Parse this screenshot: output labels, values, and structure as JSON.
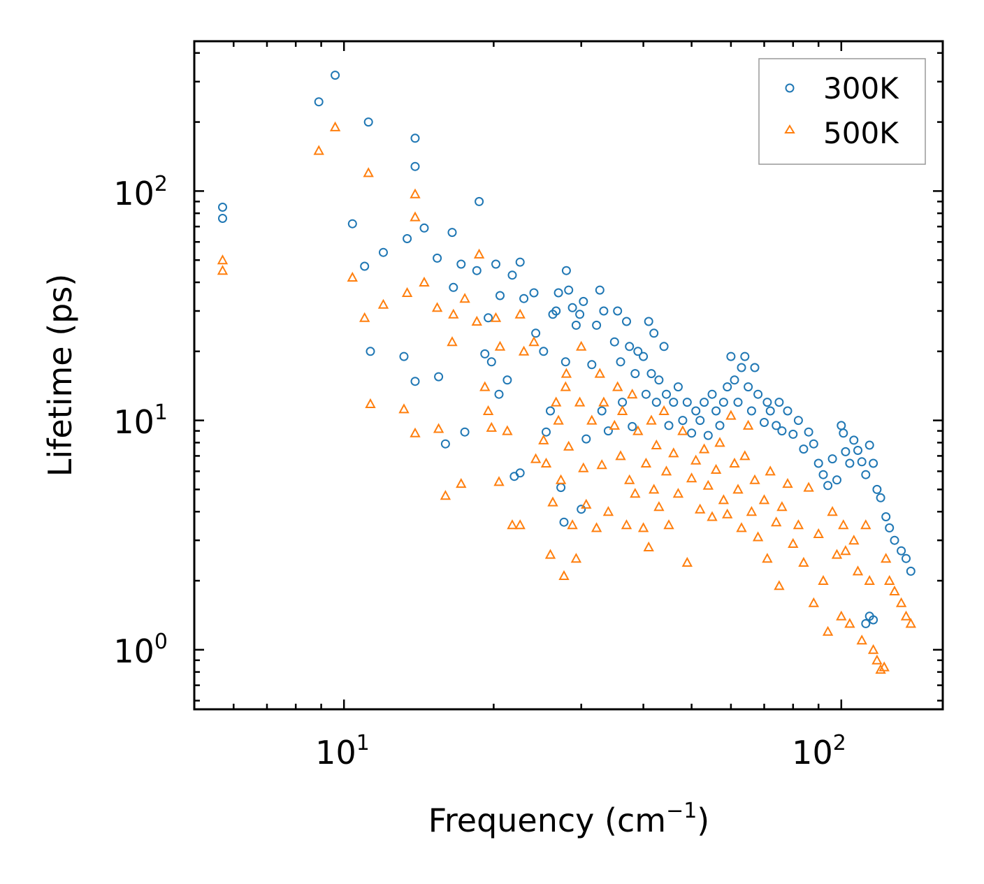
{
  "chart_data": {
    "type": "scatter",
    "title": "",
    "xlabel": "Frequency (cm",
    "xlabel_sup": "−1",
    "xlabel_suffix": ")",
    "ylabel": "Lifetime (ps)",
    "xscale": "log",
    "yscale": "log",
    "xlim": [
      5,
      160
    ],
    "ylim": [
      0.55,
      450
    ],
    "x_tick_labels": [
      {
        "value": 10,
        "base": "10",
        "exp": "1"
      },
      {
        "value": 100,
        "base": "10",
        "exp": "2"
      }
    ],
    "y_tick_labels": [
      {
        "value": 1,
        "base": "10",
        "exp": "0"
      },
      {
        "value": 10,
        "base": "10",
        "exp": "1"
      },
      {
        "value": 100,
        "base": "10",
        "exp": "2"
      }
    ],
    "legend_position": "top-right",
    "series": [
      {
        "name": "300K",
        "marker": "circle",
        "color": "#1f77b4",
        "points": [
          [
            5.7,
            85
          ],
          [
            5.7,
            76
          ],
          [
            8.9,
            245
          ],
          [
            9.6,
            320
          ],
          [
            10.4,
            72
          ],
          [
            11.0,
            47
          ],
          [
            11.2,
            200
          ],
          [
            11.3,
            20
          ],
          [
            12.0,
            54
          ],
          [
            13.2,
            19
          ],
          [
            13.4,
            62
          ],
          [
            13.9,
            170
          ],
          [
            13.9,
            128
          ],
          [
            13.9,
            14.8
          ],
          [
            14.5,
            69
          ],
          [
            15.4,
            51
          ],
          [
            15.5,
            15.5
          ],
          [
            16.0,
            7.9
          ],
          [
            16.5,
            66
          ],
          [
            16.6,
            38
          ],
          [
            17.2,
            48
          ],
          [
            17.5,
            8.9
          ],
          [
            18.5,
            45
          ],
          [
            18.7,
            90
          ],
          [
            19.2,
            19.5
          ],
          [
            19.5,
            28
          ],
          [
            19.8,
            18
          ],
          [
            20.2,
            48
          ],
          [
            20.5,
            13
          ],
          [
            20.6,
            35
          ],
          [
            21.3,
            15
          ],
          [
            21.8,
            43
          ],
          [
            22.6,
            49
          ],
          [
            22.6,
            5.9
          ],
          [
            22.0,
            5.7
          ],
          [
            23.0,
            34
          ],
          [
            24.1,
            36
          ],
          [
            24.3,
            24
          ],
          [
            25.2,
            20
          ],
          [
            25.5,
            8.9
          ],
          [
            26.0,
            11
          ],
          [
            26.3,
            29
          ],
          [
            26.7,
            30
          ],
          [
            27.0,
            36
          ],
          [
            27.3,
            5.1
          ],
          [
            27.7,
            3.6
          ],
          [
            27.9,
            18
          ],
          [
            28.0,
            45
          ],
          [
            28.3,
            37
          ],
          [
            28.8,
            31
          ],
          [
            29.3,
            26
          ],
          [
            29.8,
            29
          ],
          [
            30.0,
            4.1
          ],
          [
            30.3,
            33
          ],
          [
            30.7,
            8.3
          ],
          [
            31.5,
            17.5
          ],
          [
            32.2,
            26
          ],
          [
            32.7,
            37
          ],
          [
            33.0,
            11
          ],
          [
            33.3,
            30
          ],
          [
            34.0,
            9.0
          ],
          [
            35.0,
            22
          ],
          [
            35.5,
            30
          ],
          [
            36.0,
            18
          ],
          [
            36.3,
            12
          ],
          [
            37.0,
            27
          ],
          [
            37.5,
            21
          ],
          [
            38.0,
            9.4
          ],
          [
            38.5,
            16
          ],
          [
            39.0,
            20
          ],
          [
            40.0,
            19
          ],
          [
            40.5,
            13
          ],
          [
            41.0,
            27
          ],
          [
            41.5,
            16
          ],
          [
            42.0,
            24
          ],
          [
            42.5,
            12
          ],
          [
            43.0,
            15
          ],
          [
            44.0,
            21
          ],
          [
            44.5,
            13
          ],
          [
            45.0,
            9.5
          ],
          [
            46.0,
            12
          ],
          [
            47.0,
            14
          ],
          [
            48.0,
            10
          ],
          [
            49.0,
            12
          ],
          [
            50.0,
            8.8
          ],
          [
            51.0,
            11
          ],
          [
            52.0,
            10
          ],
          [
            53.0,
            12
          ],
          [
            54.0,
            8.6
          ],
          [
            55.0,
            13
          ],
          [
            56.0,
            11
          ],
          [
            57.0,
            9.5
          ],
          [
            58.0,
            12
          ],
          [
            59.0,
            14
          ],
          [
            60.0,
            19
          ],
          [
            61.0,
            15
          ],
          [
            62.0,
            12
          ],
          [
            63.0,
            17
          ],
          [
            64.0,
            19
          ],
          [
            65.0,
            14
          ],
          [
            66.0,
            11
          ],
          [
            67.0,
            17
          ],
          [
            68.0,
            13
          ],
          [
            70.0,
            9.8
          ],
          [
            71.0,
            12
          ],
          [
            72.0,
            11
          ],
          [
            74.0,
            9.5
          ],
          [
            75.0,
            12
          ],
          [
            76.0,
            9.0
          ],
          [
            78.0,
            11
          ],
          [
            80.0,
            8.7
          ],
          [
            82.0,
            10
          ],
          [
            84.0,
            7.5
          ],
          [
            86.0,
            8.9
          ],
          [
            88.0,
            7.9
          ],
          [
            90.0,
            6.5
          ],
          [
            92.0,
            5.8
          ],
          [
            94.0,
            5.2
          ],
          [
            96.0,
            6.8
          ],
          [
            98.0,
            5.5
          ],
          [
            100.0,
            9.5
          ],
          [
            101.0,
            8.8
          ],
          [
            102.0,
            7.3
          ],
          [
            104.0,
            6.5
          ],
          [
            106.0,
            8.2
          ],
          [
            108.0,
            7.4
          ],
          [
            110.0,
            6.6
          ],
          [
            112.0,
            5.8
          ],
          [
            114.0,
            7.8
          ],
          [
            116.0,
            6.5
          ],
          [
            118.0,
            5.0
          ],
          [
            120.0,
            4.6
          ],
          [
            123.0,
            3.8
          ],
          [
            125.0,
            3.4
          ],
          [
            128.0,
            3.0
          ],
          [
            132.0,
            2.7
          ],
          [
            135.0,
            2.5
          ],
          [
            138.0,
            2.2
          ],
          [
            112.0,
            1.3
          ],
          [
            114.0,
            1.4
          ],
          [
            116.0,
            1.35
          ]
        ]
      },
      {
        "name": "500K",
        "marker": "triangle",
        "color": "#ff7f0e",
        "points": [
          [
            5.7,
            50
          ],
          [
            5.7,
            45
          ],
          [
            8.9,
            150
          ],
          [
            9.6,
            190
          ],
          [
            10.4,
            42
          ],
          [
            11.0,
            28
          ],
          [
            11.2,
            120
          ],
          [
            11.3,
            11.8
          ],
          [
            12.0,
            32
          ],
          [
            13.2,
            11.2
          ],
          [
            13.4,
            36
          ],
          [
            13.9,
            97
          ],
          [
            13.9,
            77
          ],
          [
            13.9,
            8.8
          ],
          [
            14.5,
            40
          ],
          [
            15.4,
            31
          ],
          [
            15.5,
            9.2
          ],
          [
            16.0,
            4.7
          ],
          [
            16.5,
            22
          ],
          [
            16.6,
            29
          ],
          [
            17.2,
            5.3
          ],
          [
            17.5,
            34
          ],
          [
            18.5,
            27
          ],
          [
            18.7,
            53
          ],
          [
            19.2,
            14
          ],
          [
            19.5,
            11
          ],
          [
            19.8,
            9.3
          ],
          [
            20.2,
            28
          ],
          [
            20.5,
            5.4
          ],
          [
            20.6,
            21
          ],
          [
            21.3,
            9.0
          ],
          [
            21.8,
            3.5
          ],
          [
            22.6,
            3.5
          ],
          [
            22.6,
            29
          ],
          [
            23.0,
            20
          ],
          [
            24.1,
            22
          ],
          [
            24.3,
            6.8
          ],
          [
            25.2,
            8.2
          ],
          [
            25.5,
            6.5
          ],
          [
            26.0,
            2.6
          ],
          [
            26.3,
            4.4
          ],
          [
            26.7,
            12
          ],
          [
            27.0,
            10
          ],
          [
            27.3,
            5.5
          ],
          [
            27.7,
            2.1
          ],
          [
            27.9,
            14
          ],
          [
            28.0,
            16
          ],
          [
            28.3,
            7.7
          ],
          [
            28.8,
            3.5
          ],
          [
            29.3,
            2.5
          ],
          [
            29.8,
            12
          ],
          [
            30.0,
            21
          ],
          [
            30.3,
            6.2
          ],
          [
            30.7,
            4.3
          ],
          [
            31.5,
            10
          ],
          [
            32.2,
            3.4
          ],
          [
            32.7,
            16
          ],
          [
            33.0,
            6.4
          ],
          [
            33.3,
            12
          ],
          [
            34.0,
            4.0
          ],
          [
            35.0,
            9.5
          ],
          [
            35.5,
            14
          ],
          [
            36.0,
            7.0
          ],
          [
            36.3,
            11
          ],
          [
            37.0,
            3.5
          ],
          [
            37.5,
            5.5
          ],
          [
            38.0,
            13
          ],
          [
            38.5,
            4.8
          ],
          [
            39.0,
            9.0
          ],
          [
            40.0,
            3.4
          ],
          [
            40.5,
            6.5
          ],
          [
            41.0,
            2.8
          ],
          [
            41.5,
            10
          ],
          [
            42.0,
            5.0
          ],
          [
            42.5,
            7.8
          ],
          [
            43.0,
            4.2
          ],
          [
            44.0,
            11
          ],
          [
            44.5,
            6.0
          ],
          [
            45.0,
            3.5
          ],
          [
            46.0,
            7.2
          ],
          [
            47.0,
            4.8
          ],
          [
            48.0,
            9.0
          ],
          [
            49.0,
            2.4
          ],
          [
            50.0,
            5.6
          ],
          [
            51.0,
            6.7
          ],
          [
            52.0,
            4.1
          ],
          [
            53.0,
            7.5
          ],
          [
            54.0,
            5.2
          ],
          [
            55.0,
            3.8
          ],
          [
            56.0,
            6.1
          ],
          [
            57.0,
            8.0
          ],
          [
            58.0,
            4.5
          ],
          [
            59.0,
            3.9
          ],
          [
            60.0,
            10.5
          ],
          [
            61.0,
            6.5
          ],
          [
            62.0,
            5.0
          ],
          [
            63.0,
            3.4
          ],
          [
            64.0,
            7.0
          ],
          [
            65.0,
            9.5
          ],
          [
            66.0,
            4.0
          ],
          [
            67.0,
            5.5
          ],
          [
            68.0,
            3.1
          ],
          [
            70.0,
            4.5
          ],
          [
            71.0,
            2.5
          ],
          [
            72.0,
            6.0
          ],
          [
            74.0,
            3.6
          ],
          [
            75.0,
            1.9
          ],
          [
            76.0,
            4.2
          ],
          [
            78.0,
            5.3
          ],
          [
            80.0,
            2.9
          ],
          [
            82.0,
            3.5
          ],
          [
            84.0,
            2.4
          ],
          [
            86.0,
            5.1
          ],
          [
            88.0,
            1.6
          ],
          [
            90.0,
            3.2
          ],
          [
            92.0,
            2.0
          ],
          [
            94.0,
            1.2
          ],
          [
            96.0,
            4.0
          ],
          [
            98.0,
            2.6
          ],
          [
            100.0,
            1.4
          ],
          [
            101.0,
            3.5
          ],
          [
            102.0,
            2.7
          ],
          [
            104.0,
            1.3
          ],
          [
            106.0,
            3.0
          ],
          [
            108.0,
            2.2
          ],
          [
            110.0,
            1.1
          ],
          [
            112.0,
            3.5
          ],
          [
            114.0,
            2.0
          ],
          [
            116.0,
            1.0
          ],
          [
            118.0,
            0.9
          ],
          [
            120.0,
            0.82
          ],
          [
            122.0,
            0.84
          ],
          [
            123.0,
            2.5
          ],
          [
            125.0,
            2.0
          ],
          [
            128.0,
            1.8
          ],
          [
            132.0,
            1.6
          ],
          [
            135.0,
            1.4
          ],
          [
            138.0,
            1.3
          ]
        ]
      }
    ]
  }
}
